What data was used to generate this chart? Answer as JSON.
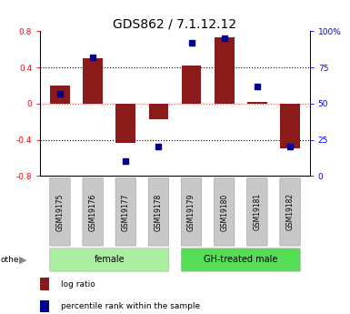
{
  "title": "GDS862 / 7.1.12.12",
  "samples": [
    "GSM19175",
    "GSM19176",
    "GSM19177",
    "GSM19178",
    "GSM19179",
    "GSM19180",
    "GSM19181",
    "GSM19182"
  ],
  "log_ratio": [
    0.2,
    0.5,
    -0.43,
    -0.17,
    0.42,
    0.73,
    0.02,
    -0.5
  ],
  "percentile": [
    57,
    82,
    10,
    20,
    92,
    95,
    62,
    20
  ],
  "bar_color": "#8B1A1A",
  "dot_color": "#00008B",
  "groups": [
    {
      "label": "female",
      "start": 0,
      "end": 3,
      "color": "#AAEEA0"
    },
    {
      "label": "GH-treated male",
      "start": 4,
      "end": 7,
      "color": "#55DD55"
    }
  ],
  "ylim_left": [
    -0.8,
    0.8
  ],
  "ylim_right": [
    0,
    100
  ],
  "yticks_left": [
    -0.8,
    -0.4,
    0.0,
    0.4,
    0.8
  ],
  "yticks_right": [
    0,
    25,
    50,
    75,
    100
  ],
  "ytick_labels_right": [
    "0",
    "25",
    "50",
    "75",
    "100%"
  ],
  "ytick_labels_left": [
    "-0.8",
    "-0.4",
    "0",
    "0.4",
    "0.8"
  ],
  "hline_black": [
    0.4,
    -0.4
  ],
  "zero_line_color": "#FF4444",
  "title_fontsize": 10,
  "tick_fontsize": 6.5,
  "bar_width": 0.6,
  "legend_log_ratio": "log ratio",
  "legend_percentile": "percentile rank within the sample"
}
